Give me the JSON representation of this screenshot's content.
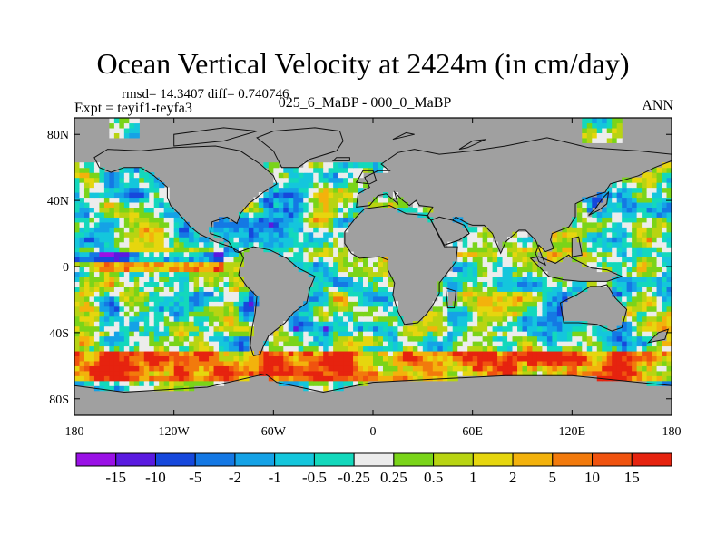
{
  "chart_data": {
    "type": "heatmap",
    "title": "Ocean Vertical Velocity at 2424m (in cm/day)",
    "stats": "rmsd= 14.3407 diff= 0.740746",
    "experiment": "Expt = teyif1-teyfa3",
    "center_label": "025_6_MaBP - 000_0_MaBP",
    "season": "ANN",
    "xlim": [
      -180,
      180
    ],
    "ylim": [
      -90,
      90
    ],
    "x_ticks": [
      {
        "value": -180,
        "label": "180"
      },
      {
        "value": -120,
        "label": "120W"
      },
      {
        "value": -60,
        "label": "60W"
      },
      {
        "value": 0,
        "label": "0"
      },
      {
        "value": 60,
        "label": "60E"
      },
      {
        "value": 120,
        "label": "120E"
      },
      {
        "value": 180,
        "label": "180"
      }
    ],
    "y_ticks": [
      {
        "value": 80,
        "label": "80N"
      },
      {
        "value": 40,
        "label": "40N"
      },
      {
        "value": 0,
        "label": "0"
      },
      {
        "value": -40,
        "label": "40S"
      },
      {
        "value": -80,
        "label": "80S"
      }
    ],
    "colorbar": {
      "colors": [
        "#9a11e6",
        "#5a1ae0",
        "#1648dc",
        "#1478e4",
        "#15a2e6",
        "#14c6dc",
        "#13d8bc",
        "#ececec",
        "#7ad419",
        "#b8d412",
        "#e6d60e",
        "#f3b20c",
        "#f27a0c",
        "#f0530f",
        "#e6230f"
      ],
      "labels": [
        "-15",
        "-10",
        "-5",
        "-2",
        "-1",
        "-0.5",
        "-0.25",
        "0.25",
        "0.5",
        "1",
        "2",
        "5",
        "10",
        "15"
      ]
    }
  }
}
